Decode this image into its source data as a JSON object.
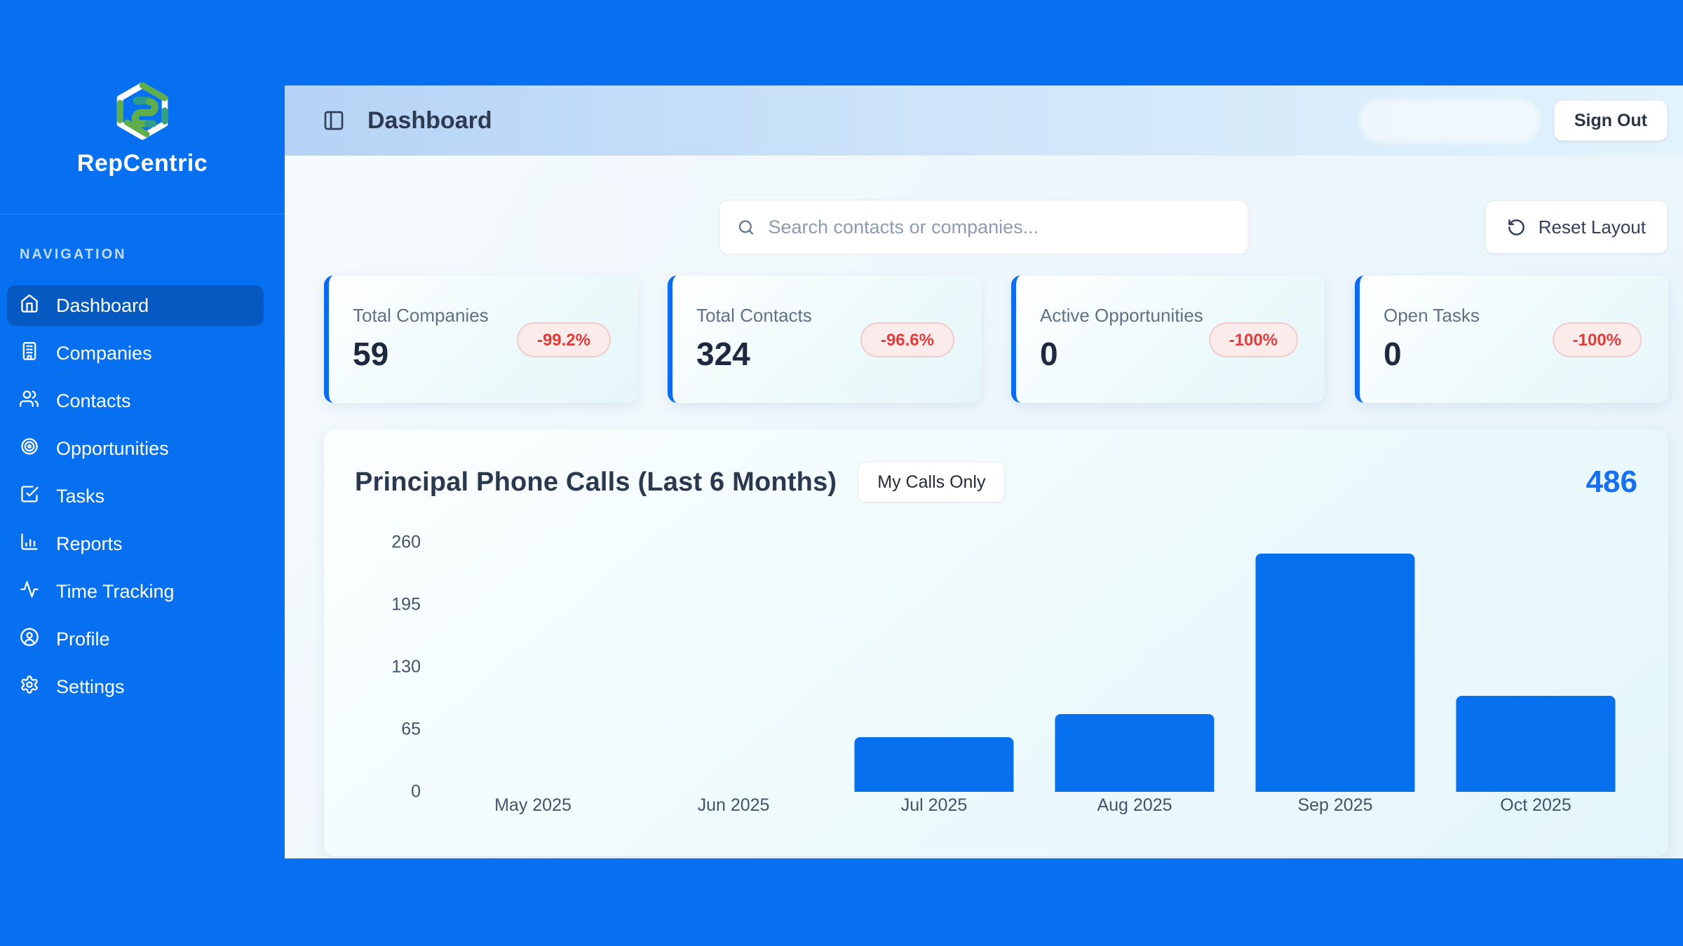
{
  "brand": {
    "name": "RepCentric"
  },
  "sidebar": {
    "section_label": "NAVIGATION",
    "items": [
      {
        "label": "Dashboard",
        "icon": "home-icon",
        "active": true
      },
      {
        "label": "Companies",
        "icon": "building-icon",
        "active": false
      },
      {
        "label": "Contacts",
        "icon": "users-icon",
        "active": false
      },
      {
        "label": "Opportunities",
        "icon": "target-icon",
        "active": false
      },
      {
        "label": "Tasks",
        "icon": "check-square-icon",
        "active": false
      },
      {
        "label": "Reports",
        "icon": "bar-chart-icon",
        "active": false
      },
      {
        "label": "Time Tracking",
        "icon": "activity-icon",
        "active": false
      },
      {
        "label": "Profile",
        "icon": "user-circle-icon",
        "active": false
      },
      {
        "label": "Settings",
        "icon": "gear-icon",
        "active": false
      }
    ]
  },
  "header": {
    "title": "Dashboard",
    "sign_out_label": "Sign Out"
  },
  "toolbar": {
    "search_placeholder": "Search contacts or companies...",
    "reset_layout_label": "Reset Layout"
  },
  "stat_cards": [
    {
      "label": "Total Companies",
      "value": "59",
      "change": "-99.2%"
    },
    {
      "label": "Total Contacts",
      "value": "324",
      "change": "-96.6%"
    },
    {
      "label": "Active Opportunities",
      "value": "0",
      "change": "-100%"
    },
    {
      "label": "Open Tasks",
      "value": "0",
      "change": "-100%"
    }
  ],
  "chart_card": {
    "title": "Principal Phone Calls (Last 6 Months)",
    "toggle_label": "My Calls Only",
    "total": "486"
  },
  "chart_data": {
    "type": "bar",
    "title": "Principal Phone Calls (Last 6 Months)",
    "categories": [
      "May 2025",
      "Jun 2025",
      "Jul 2025",
      "Aug 2025",
      "Sep 2025",
      "Oct 2025"
    ],
    "values": [
      0,
      0,
      57,
      81,
      248,
      100
    ],
    "total": 486,
    "yticks": [
      0,
      65,
      130,
      195,
      260
    ],
    "ylim": [
      0,
      260
    ],
    "xlabel": "",
    "ylabel": "",
    "grid": false,
    "legend": false,
    "bar_color": "#0670ee"
  },
  "colors": {
    "frame_blue": "#0670f0",
    "active_nav": "#0759c2",
    "bar_blue": "#0670ee",
    "accent_blue": "#176ff2",
    "badge_bg": "#fcebeb",
    "badge_text": "#e13c3c",
    "card_border": "#0b6cf0"
  }
}
